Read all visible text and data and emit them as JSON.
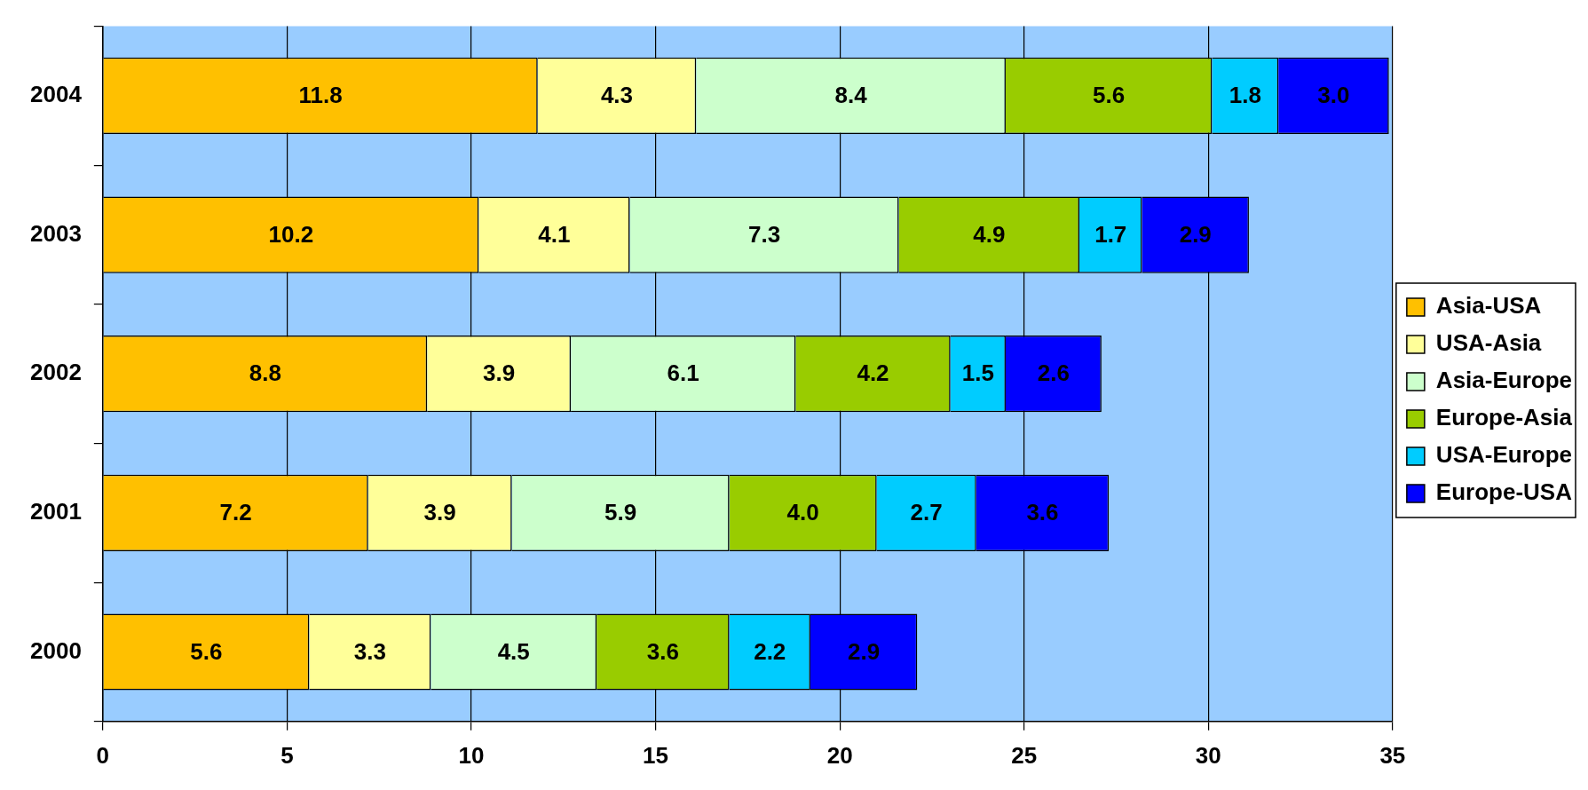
{
  "chart_data": {
    "type": "bar",
    "orientation": "horizontal",
    "stacked": true,
    "categories": [
      "2004",
      "2003",
      "2002",
      "2001",
      "2000"
    ],
    "series": [
      {
        "name": "Asia-USA",
        "color": "#ffc000",
        "values": [
          11.8,
          10.2,
          8.8,
          7.2,
          5.6
        ],
        "value_labels": [
          "11.8",
          "10.2",
          "8.8",
          "7.2",
          "5.6"
        ]
      },
      {
        "name": "USA-Asia",
        "color": "#ffff99",
        "values": [
          4.3,
          4.1,
          3.9,
          3.9,
          3.3
        ],
        "value_labels": [
          "4.3",
          "4.1",
          "3.9",
          "3.9",
          "3.3"
        ]
      },
      {
        "name": "Asia-Europe",
        "color": "#ccffcc",
        "values": [
          8.4,
          7.3,
          6.1,
          5.9,
          4.5
        ],
        "value_labels": [
          "8.4",
          "7.3",
          "6.1",
          "5.9",
          "4.5"
        ]
      },
      {
        "name": "Europe-Asia",
        "color": "#99cc00",
        "values": [
          5.6,
          4.9,
          4.2,
          4.0,
          3.6
        ],
        "value_labels": [
          "5.6",
          "4.9",
          "4.2",
          "4.0",
          "3.6"
        ]
      },
      {
        "name": "USA-Europe",
        "color": "#00ccff",
        "values": [
          1.8,
          1.7,
          1.5,
          2.7,
          2.2
        ],
        "value_labels": [
          "1.8",
          "1.7",
          "1.5",
          "2.7",
          "2.2"
        ]
      },
      {
        "name": "Europe-USA",
        "color": "#0000ff",
        "values": [
          3.0,
          2.9,
          2.6,
          3.6,
          2.9
        ],
        "value_labels": [
          "3.0",
          "2.9",
          "2.6",
          "3.6",
          "2.9"
        ]
      }
    ],
    "xlim": [
      0,
      35
    ],
    "xticks": [
      0,
      5,
      10,
      15,
      20,
      25,
      30,
      35
    ],
    "grid": "x",
    "legend": "right"
  }
}
